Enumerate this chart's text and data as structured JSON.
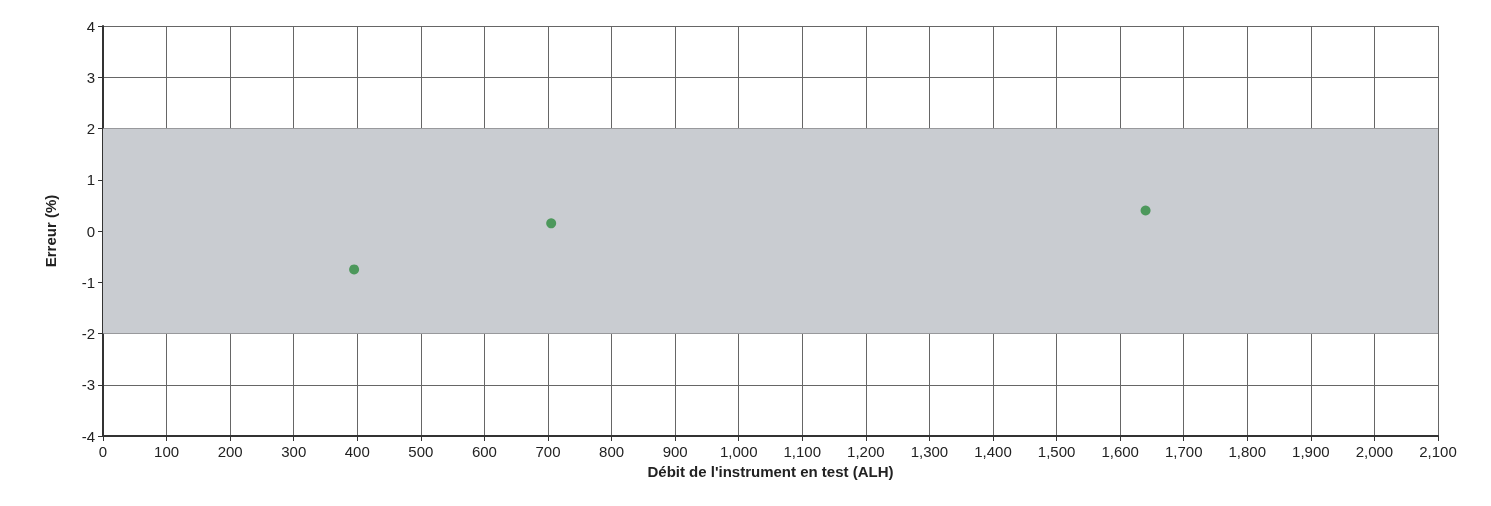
{
  "chart_data": {
    "type": "scatter",
    "xlabel": "Débit de l'instrument en test (ALH)",
    "ylabel": "Erreur (%)",
    "x": [
      395,
      705,
      1640
    ],
    "series": [
      {
        "color": "#2e8b3e",
        "values": [
          -0.75,
          0.15,
          0.4
        ]
      }
    ],
    "xlim": [
      0,
      2100
    ],
    "xticks": [
      0,
      100,
      200,
      300,
      400,
      500,
      600,
      700,
      800,
      900,
      {
        "value": 1000,
        "label": "1,000"
      },
      {
        "value": 1100,
        "label": "1,100"
      },
      {
        "value": 1200,
        "label": "1,200"
      },
      {
        "value": 1300,
        "label": "1,300"
      },
      {
        "value": 1400,
        "label": "1,400"
      },
      {
        "value": 1500,
        "label": "1,500"
      },
      {
        "value": 1600,
        "label": "1,600"
      },
      {
        "value": 1700,
        "label": "1,700"
      },
      {
        "value": 1800,
        "label": "1,800"
      },
      {
        "value": 1900,
        "label": "1,900"
      },
      {
        "value": 2000,
        "label": "2,000"
      },
      {
        "value": 2100,
        "label": "2,100"
      }
    ],
    "ylim": [
      -4,
      4
    ],
    "yticks": [
      -4,
      -3,
      -2,
      -1,
      0,
      1,
      2,
      3,
      4
    ],
    "bands": [
      {
        "axis": "y",
        "from": -2,
        "to": 2,
        "color": "#c9ccd1"
      }
    ],
    "grid": true,
    "marker": "circle"
  }
}
